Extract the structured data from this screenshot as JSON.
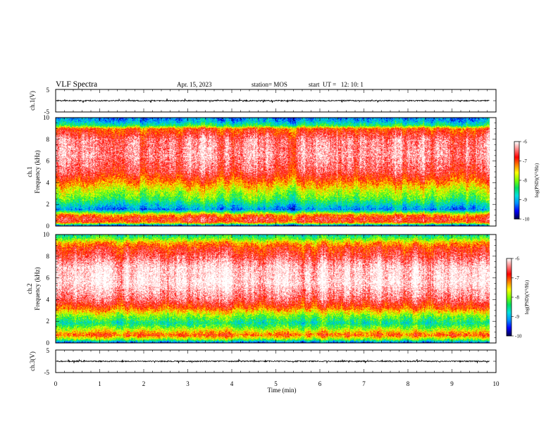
{
  "header": {
    "title": "VLF Spectra",
    "date": "Apr. 15, 2023",
    "station": "station= MOS",
    "start_ut": "start  UT =   12: 10: 1"
  },
  "colors": {
    "scale": [
      "#000050",
      "#0000ff",
      "#0090ff",
      "#00e0e0",
      "#00e060",
      "#7fff00",
      "#ffff00",
      "#ff8000",
      "#ff0000",
      "#ff8080",
      "#ffffff"
    ]
  },
  "chart_data": [
    {
      "type": "line",
      "panel": "ch1-waveform",
      "ylabel": "ch.1(V)",
      "ylim": [
        -5,
        5
      ],
      "yticks": [
        "5",
        "-5"
      ],
      "xlim": [
        0,
        10
      ],
      "mean_value": 0.0
    },
    {
      "type": "heatmap",
      "panel": "ch1-spectrogram",
      "ylabel": "ch.1\nFrequency (kHz)",
      "ylabel_lines": [
        "ch.1",
        "Frequency (kHz)"
      ],
      "ylim": [
        0,
        10
      ],
      "yticks": [
        "0",
        "2",
        "4",
        "6",
        "8",
        "10"
      ],
      "xlim": [
        0,
        10
      ],
      "data_extent_min": 9.85,
      "colorbar": {
        "label": "log(PSD)(V²/Hz)",
        "range": [
          -10,
          -6
        ],
        "ticks": [
          "-6",
          "-7",
          "-8",
          "-9",
          "-10"
        ]
      },
      "profile_log_psd": [
        {
          "f": 0.0,
          "v": -9.5
        },
        {
          "f": 0.3,
          "v": -7.0
        },
        {
          "f": 0.6,
          "v": -6.7
        },
        {
          "f": 1.0,
          "v": -7.2
        },
        {
          "f": 1.5,
          "v": -9.2
        },
        {
          "f": 2.0,
          "v": -8.7
        },
        {
          "f": 2.5,
          "v": -8.2
        },
        {
          "f": 3.2,
          "v": -7.8
        },
        {
          "f": 4.0,
          "v": -7.2
        },
        {
          "f": 5.0,
          "v": -6.6
        },
        {
          "f": 6.5,
          "v": -6.3
        },
        {
          "f": 8.0,
          "v": -6.4
        },
        {
          "f": 8.6,
          "v": -6.8
        },
        {
          "f": 9.0,
          "v": -7.0
        },
        {
          "f": 9.3,
          "v": -8.4
        },
        {
          "f": 9.7,
          "v": -9.0
        },
        {
          "f": 10.0,
          "v": -9.2
        }
      ]
    },
    {
      "type": "heatmap",
      "panel": "ch2-spectrogram",
      "ylabel": "ch.2\nFrequency (kHz)",
      "ylabel_lines": [
        "ch.2",
        "Frequency (kHz)"
      ],
      "ylim": [
        0,
        10
      ],
      "yticks": [
        "0",
        "2",
        "4",
        "6",
        "8",
        "10"
      ],
      "xlim": [
        0,
        10
      ],
      "data_extent_min": 9.85,
      "colorbar": {
        "label": "log(PSD)(V²/Hz)",
        "range": [
          -10,
          -6
        ],
        "ticks": [
          "-6",
          "-7",
          "-8",
          "-9",
          "-10"
        ]
      },
      "profile_log_psd": [
        {
          "f": 0.0,
          "v": -9.4
        },
        {
          "f": 0.3,
          "v": -8.0
        },
        {
          "f": 0.7,
          "v": -7.0
        },
        {
          "f": 1.2,
          "v": -7.8
        },
        {
          "f": 1.8,
          "v": -8.6
        },
        {
          "f": 2.5,
          "v": -8.0
        },
        {
          "f": 3.2,
          "v": -7.1
        },
        {
          "f": 4.0,
          "v": -6.5
        },
        {
          "f": 5.5,
          "v": -6.0
        },
        {
          "f": 7.0,
          "v": -6.1
        },
        {
          "f": 8.0,
          "v": -6.6
        },
        {
          "f": 8.8,
          "v": -6.9
        },
        {
          "f": 9.3,
          "v": -7.4
        },
        {
          "f": 9.7,
          "v": -8.2
        },
        {
          "f": 10.0,
          "v": -8.6
        }
      ]
    },
    {
      "type": "line",
      "panel": "ch3-waveform",
      "ylabel": "ch.3(V)",
      "ylim": [
        -5,
        5
      ],
      "yticks": [
        "5",
        "-5"
      ],
      "xlim": [
        0,
        10
      ],
      "mean_value": 0.0
    }
  ],
  "xaxis": {
    "label": "Time (min)",
    "ticks": [
      "0",
      "1",
      "2",
      "3",
      "4",
      "5",
      "6",
      "7",
      "8",
      "9",
      "10"
    ]
  }
}
